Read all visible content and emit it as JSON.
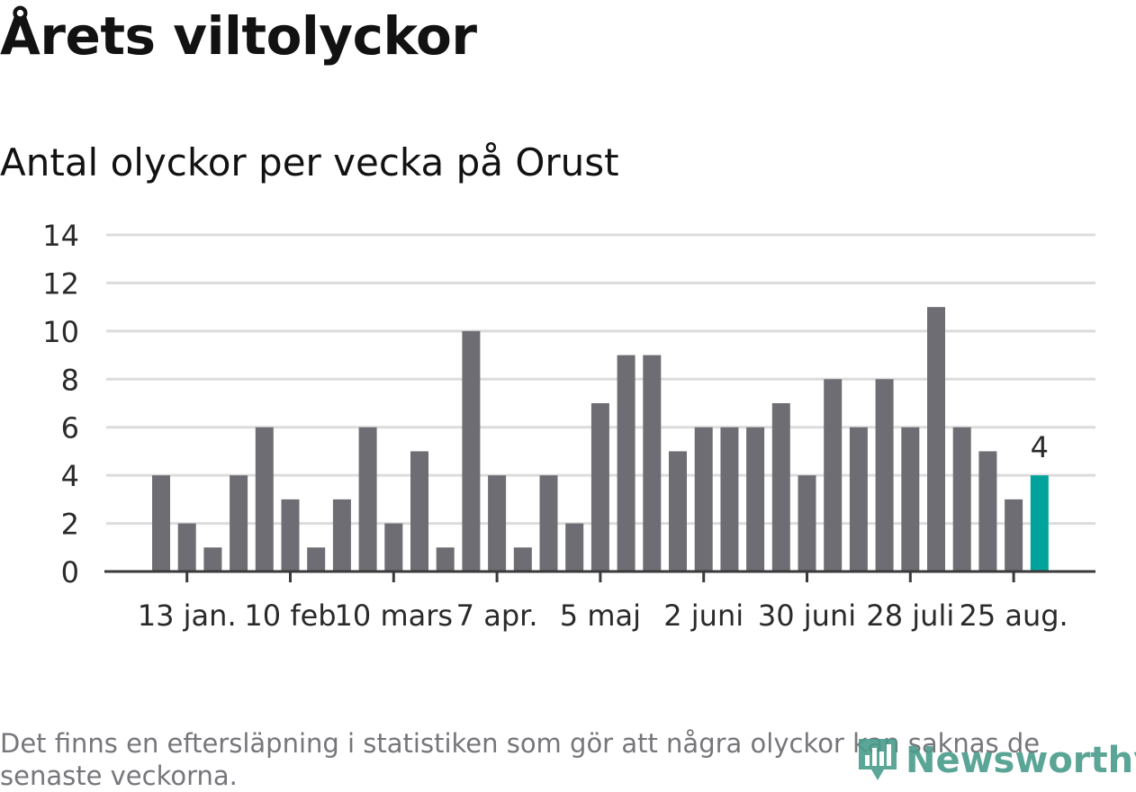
{
  "header": {
    "title": "Årets viltolyckor",
    "subtitle": "Antal olyckor per vecka på Orust"
  },
  "footer": {
    "note": "Det finns en eftersläpning i statistiken som gör att några olyckor kan saknas de senaste veckorna.",
    "logo_text": "Newsworthy",
    "logo_icon": "bar-chart-icon"
  },
  "colors": {
    "bar": "#6e6d73",
    "highlight": "#00a39b",
    "grid": "#dcdcdc",
    "axis": "#3a3a3a"
  },
  "chart_data": {
    "type": "bar",
    "title": "Antal olyckor per vecka på Orust",
    "xlabel": "",
    "ylabel": "",
    "ylim": [
      0,
      14
    ],
    "yticks": [
      0,
      2,
      4,
      6,
      8,
      10,
      12,
      14
    ],
    "x_tick_labels": [
      "13 jan.",
      "10 feb",
      "10 mars",
      "7 apr.",
      "5 maj",
      "2 juni",
      "30 juni",
      "28 juli",
      "25 aug."
    ],
    "values": [
      4,
      2,
      1,
      4,
      6,
      3,
      1,
      3,
      6,
      2,
      5,
      1,
      10,
      4,
      1,
      4,
      2,
      7,
      9,
      9,
      5,
      6,
      6,
      6,
      7,
      4,
      8,
      6,
      8,
      6,
      11,
      6,
      5,
      3,
      4
    ],
    "highlight_index": 34,
    "data_label": "4",
    "grid": true
  }
}
